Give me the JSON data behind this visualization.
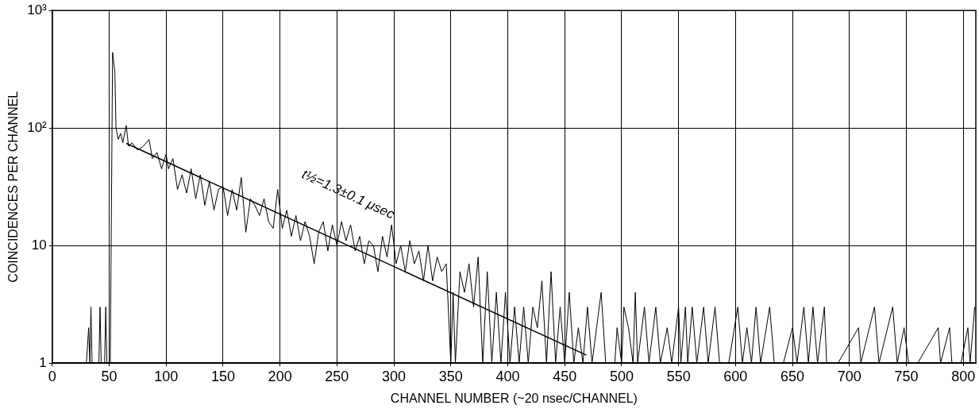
{
  "chart_data": {
    "type": "line",
    "xlabel": "CHANNEL NUMBER (~20 nsec/CHANNEL)",
    "ylabel": "COINCIDENCES PER CHANNEL",
    "annotations": [
      "t½=1.3±0.1 μsec"
    ],
    "series": [
      {
        "color": "#000000",
        "x": [
          0,
          30,
          32,
          33,
          34,
          35,
          41,
          42,
          43,
          46,
          47,
          48,
          51,
          53,
          55,
          56,
          58,
          60,
          62,
          65,
          67,
          70,
          75,
          80,
          85,
          88,
          92,
          96,
          100,
          102,
          106,
          110,
          114,
          118,
          122,
          126,
          130,
          134,
          138,
          142,
          146,
          150,
          154,
          158,
          162,
          166,
          170,
          174,
          178,
          182,
          186,
          190,
          194,
          198,
          202,
          206,
          210,
          214,
          218,
          222,
          226,
          230,
          234,
          238,
          242,
          246,
          250,
          254,
          258,
          262,
          266,
          270,
          274,
          278,
          282,
          286,
          290,
          294,
          298,
          302,
          306,
          310,
          314,
          318,
          322,
          326,
          330,
          334,
          338,
          342,
          346,
          350,
          352,
          354,
          358,
          362,
          366,
          370,
          374,
          378,
          382,
          386,
          390,
          394,
          398,
          402,
          406,
          410,
          414,
          418,
          422,
          426,
          430,
          434,
          438,
          442,
          446,
          450,
          454,
          458,
          462,
          466,
          470,
          474,
          478,
          482,
          486,
          490,
          494,
          496,
          500,
          502,
          506,
          510,
          512,
          514,
          520,
          524,
          530,
          534,
          540,
          544,
          550,
          552,
          556,
          558,
          562,
          566,
          572,
          576,
          582,
          586,
          594,
          602,
          606,
          610,
          614,
          618,
          622,
          630,
          634,
          642,
          650,
          654,
          660,
          664,
          668,
          672,
          678,
          680,
          690,
          708,
          710,
          722,
          726,
          738,
          742,
          748,
          752,
          760,
          778,
          780,
          788,
          790,
          798,
          804,
          806,
          810
        ],
        "values": [
          1,
          1,
          2,
          1,
          3,
          1,
          1,
          3,
          1,
          1,
          3,
          1,
          1,
          440,
          300,
          100,
          80,
          90,
          75,
          105,
          70,
          75,
          65,
          70,
          80,
          55,
          62,
          45,
          60,
          45,
          55,
          30,
          40,
          28,
          45,
          25,
          40,
          22,
          35,
          20,
          30,
          32,
          18,
          30,
          20,
          38,
          13,
          25,
          22,
          18,
          25,
          16,
          14,
          30,
          14,
          20,
          12,
          18,
          11,
          16,
          12,
          7,
          13,
          16,
          9,
          15,
          10,
          16,
          11,
          15,
          9,
          12,
          7,
          11,
          10,
          6,
          12,
          8,
          15,
          7,
          10,
          6,
          11,
          7,
          9,
          5,
          10,
          5,
          8,
          6,
          7,
          1,
          4,
          1,
          6,
          4,
          7,
          3,
          8,
          1,
          6,
          1,
          4,
          1,
          4,
          1,
          3,
          1,
          3,
          1,
          3,
          2,
          5,
          1,
          6,
          1,
          3,
          1,
          4,
          1,
          2,
          1,
          3,
          1,
          2,
          4,
          1,
          1,
          1,
          2,
          1,
          3,
          2,
          1,
          4,
          1,
          3,
          1,
          3,
          1,
          2,
          1,
          3,
          1,
          3,
          1,
          3,
          1,
          3,
          1,
          3,
          1,
          1,
          3,
          1,
          2,
          1,
          3,
          1,
          3,
          1,
          1,
          2,
          1,
          3,
          1,
          3,
          1,
          3,
          1,
          1,
          2,
          1,
          3,
          1,
          3,
          1,
          2,
          1,
          1,
          2,
          1,
          2,
          1,
          1,
          2,
          1,
          3
        ]
      },
      {
        "type": "line",
        "color": "#000000",
        "x": [
          65,
          469
        ],
        "values": [
          74,
          1.17
        ]
      }
    ],
    "xlim": [
      0,
      811
    ],
    "xticks": [
      0,
      50,
      100,
      150,
      200,
      250,
      300,
      350,
      400,
      450,
      500,
      550,
      600,
      650,
      700,
      750,
      800
    ],
    "ylim": [
      1,
      1000
    ],
    "yticks": [
      1,
      10,
      {
        "value": 100,
        "label": "10²"
      },
      {
        "value": 1000,
        "label": "10³"
      }
    ],
    "log": "y",
    "grid": true,
    "legend": false,
    "marker": "none",
    "line_style": "solid"
  }
}
